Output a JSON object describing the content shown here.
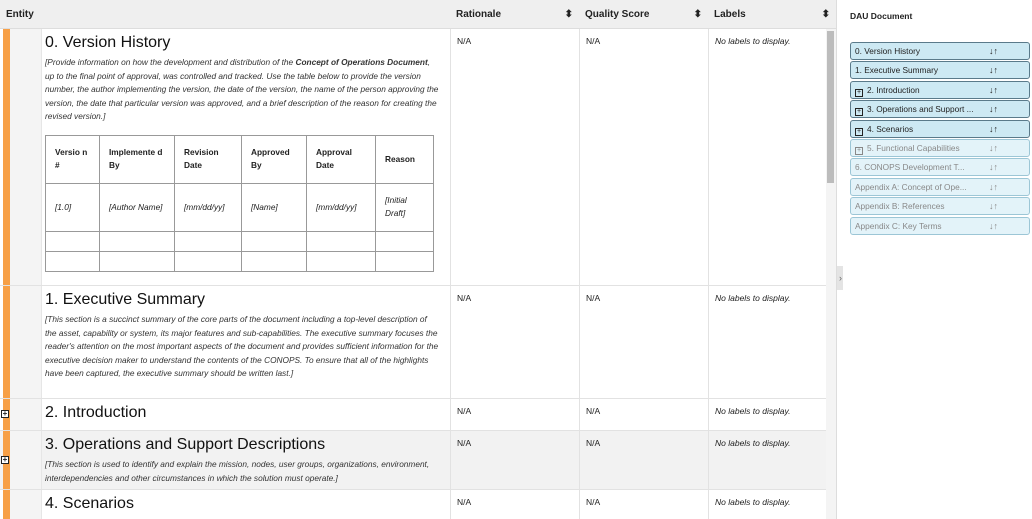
{
  "header": {
    "entity": "Entity",
    "rationale": "Rationale",
    "quality": "Quality Score",
    "labels": "Labels",
    "sort_icon": "⬍"
  },
  "rows": [
    {
      "title": "0. Version History",
      "desc_pre": "[Provide information on how the development and distribution of the ",
      "desc_bold": "Concept of Operations Document",
      "desc_post": ", up to the final point of approval, was controlled and tracked. Use the table below to provide the version number, the author implementing the version, the date of the version, the name of the person approving the version, the date that particular version was approved, and a brief description of the reason for creating the revised version.]",
      "rationale": "N/A",
      "quality": "N/A",
      "labels": "No labels to display."
    },
    {
      "title": "1. Executive Summary",
      "desc": "[This section is a succinct summary of the core parts of the document including a top-level description of the asset, capability or system, its major features and sub-capabilities. The executive summary focuses the reader's attention on the most important aspects of the document and provides sufficient information for the executive decision maker to understand the contents of the CONOPS. To ensure that all of the highlights have been captured, the executive summary should be written last.]",
      "rationale": "N/A",
      "quality": "N/A",
      "labels": "No labels to display."
    },
    {
      "title": "2. Introduction",
      "rationale": "N/A",
      "quality": "N/A",
      "labels": "No labels to display."
    },
    {
      "title": "3. Operations and Support Descriptions",
      "desc": "[This section is used to identify and explain the mission, nodes, user groups, organizations, environment, interdependencies and other circumstances in which the solution must operate.]",
      "rationale": "N/A",
      "quality": "N/A",
      "labels": "No labels to display."
    },
    {
      "title": "4. Scenarios",
      "rationale": "N/A",
      "quality": "N/A",
      "labels": "No labels to display."
    }
  ],
  "version_table": {
    "headers": [
      "Versio n #",
      "Implemente d By",
      "Revision Date",
      "Approved By",
      "Approval Date",
      "Reason"
    ],
    "row": [
      "[1.0]",
      "[Author Name]",
      "[mm/dd/yy]",
      "[Name]",
      "[mm/dd/yy]",
      "[Initial Draft]"
    ]
  },
  "sidebar": {
    "title": "DAU Document",
    "items": [
      {
        "label": "0. Version History"
      },
      {
        "label": "1. Executive Summary"
      },
      {
        "label": "2. Introduction"
      },
      {
        "label": "3. Operations and Support ..."
      },
      {
        "label": "4. Scenarios"
      },
      {
        "label": "5. Functional Capabilities"
      },
      {
        "label": "6. CONOPS Development T..."
      },
      {
        "label": "Appendix A: Concept of Ope..."
      },
      {
        "label": "Appendix B: References"
      },
      {
        "label": "Appendix C: Key Terms"
      }
    ],
    "sort_icon": "↓↑"
  },
  "colors": {
    "accent": "#f7a047",
    "nav_bg": "#cde9f3"
  }
}
